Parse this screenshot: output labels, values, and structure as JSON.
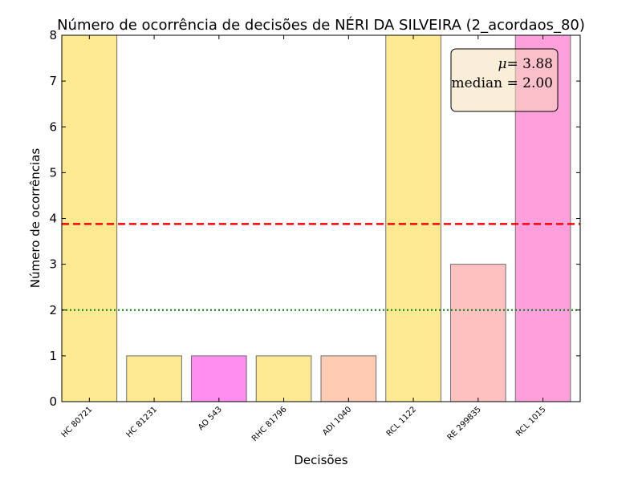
{
  "chart_data": {
    "type": "bar",
    "title": "Número de ocorrência de decisões de NÉRI DA SILVEIRA (2_acordaos_80)",
    "xlabel": "Decisões",
    "ylabel": "Número de ocorrências",
    "ylim": [
      0,
      8
    ],
    "yticks": [
      "0",
      "1",
      "2",
      "3",
      "4",
      "5",
      "6",
      "7",
      "8"
    ],
    "grid": false,
    "categories": [
      "HC 80721",
      "HC 81231",
      "AO 543",
      "RHC 81796",
      "ADI 1040",
      "RCL 1122",
      "RE 299835",
      "RCL 1015"
    ],
    "values": [
      8,
      1,
      1,
      1,
      1,
      8,
      3,
      8
    ],
    "colors": [
      "#ffe991",
      "#ffe991",
      "#ff8ef0",
      "#ffe991",
      "#ffccb3",
      "#ffe991",
      "#ffc0c0",
      "#ffa0dc"
    ],
    "mean": 3.88,
    "median": 2.0,
    "mean_color": "#ff0000",
    "median_color": "#008000",
    "legend_position": "top-right",
    "stats_box": {
      "mu_label": "μ",
      "mu_text": "= 3.88",
      "median_text": "median = 2.00"
    }
  }
}
